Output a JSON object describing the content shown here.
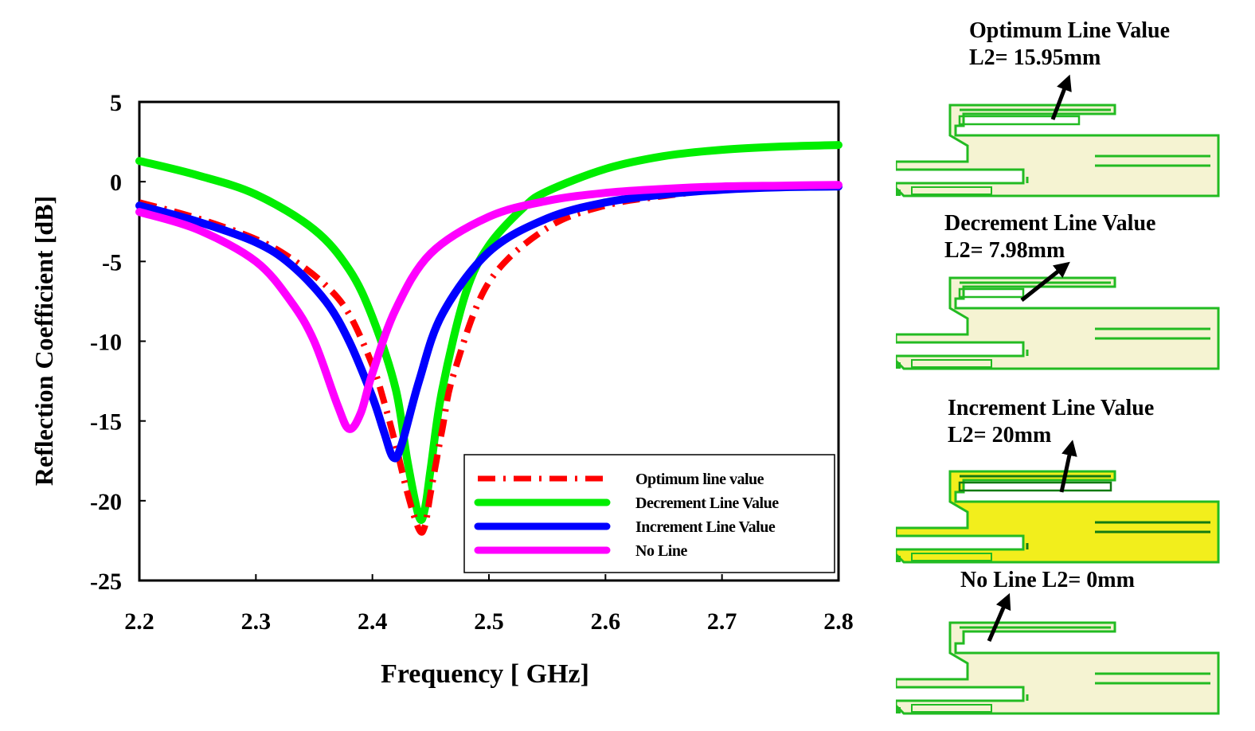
{
  "chart_data": {
    "type": "line",
    "xlabel": "Frequency [ GHz]",
    "ylabel": "Reflection Coefficient [dB]",
    "xlim": [
      2.2,
      2.8
    ],
    "ylim": [
      -25,
      5
    ],
    "xticks": [
      "2.2",
      "2.3",
      "2.4",
      "2.5",
      "2.6",
      "2.7",
      "2.8"
    ],
    "yticks": [
      "5",
      "0",
      "-5",
      "-10",
      "-15",
      "-20",
      "-25"
    ],
    "legend_position": "bottom-right",
    "series": [
      {
        "name": "Optimum line value",
        "color": "#ff0000",
        "style": "dashdot",
        "x": [
          2.2,
          2.25,
          2.3,
          2.33,
          2.36,
          2.38,
          2.4,
          2.41,
          2.42,
          2.43,
          2.44,
          2.445,
          2.45,
          2.46,
          2.47,
          2.5,
          2.55,
          2.6,
          2.65,
          2.7,
          2.75,
          2.8
        ],
        "y": [
          -1.3,
          -2.3,
          -3.6,
          -4.8,
          -6.5,
          -8.3,
          -11.5,
          -13.8,
          -16.5,
          -19.5,
          -21.8,
          -21.6,
          -19.5,
          -15.5,
          -12.0,
          -6.3,
          -2.9,
          -1.5,
          -0.9,
          -0.5,
          -0.35,
          -0.3
        ]
      },
      {
        "name": "Decrement Line Value",
        "color": "#00ee00",
        "style": "solid",
        "x": [
          2.2,
          2.25,
          2.3,
          2.35,
          2.38,
          2.4,
          2.42,
          2.43,
          2.44,
          2.445,
          2.45,
          2.46,
          2.48,
          2.5,
          2.53,
          2.55,
          2.6,
          2.65,
          2.7,
          2.75,
          2.8
        ],
        "y": [
          1.3,
          0.4,
          -0.8,
          -3.0,
          -5.5,
          -8.5,
          -13.0,
          -17.5,
          -21.0,
          -20.5,
          -18.0,
          -13.0,
          -7.0,
          -4.0,
          -1.6,
          -0.6,
          0.8,
          1.6,
          2.0,
          2.2,
          2.3
        ]
      },
      {
        "name": "Increment Line Value",
        "color": "#0000ff",
        "style": "solid",
        "x": [
          2.2,
          2.25,
          2.3,
          2.33,
          2.36,
          2.38,
          2.4,
          2.41,
          2.418,
          2.425,
          2.44,
          2.46,
          2.5,
          2.55,
          2.6,
          2.65,
          2.7,
          2.75,
          2.8
        ],
        "y": [
          -1.5,
          -2.5,
          -3.8,
          -5.2,
          -7.5,
          -10.0,
          -13.5,
          -15.7,
          -17.3,
          -16.5,
          -12.5,
          -8.3,
          -4.4,
          -2.3,
          -1.3,
          -0.8,
          -0.5,
          -0.35,
          -0.3
        ]
      },
      {
        "name": "No Line",
        "color": "#ff00ff",
        "style": "solid",
        "x": [
          2.2,
          2.25,
          2.3,
          2.33,
          2.35,
          2.37,
          2.38,
          2.39,
          2.4,
          2.42,
          2.45,
          2.5,
          2.55,
          2.6,
          2.65,
          2.7,
          2.75,
          2.8
        ],
        "y": [
          -1.9,
          -3.0,
          -5.0,
          -7.5,
          -10.0,
          -14.0,
          -15.5,
          -14.5,
          -12.0,
          -8.0,
          -4.5,
          -2.2,
          -1.2,
          -0.7,
          -0.45,
          -0.3,
          -0.25,
          -0.2
        ]
      }
    ]
  },
  "panels": [
    {
      "title_line1": "Optimum Line Value",
      "title_line2": "L2= 15.95mm",
      "variant": "optimum"
    },
    {
      "title_line1": "Decrement Line Value",
      "title_line2": "L2= 7.98mm",
      "variant": "decrement"
    },
    {
      "title_line1": "Increment Line Value",
      "title_line2": "L2= 20mm",
      "variant": "increment"
    },
    {
      "title_line1": "No Line L2= 0mm",
      "title_line2": "",
      "variant": "noline"
    }
  ],
  "colors": {
    "antenna_fill": "#f5f3d2",
    "antenna_fill_increment": "#f2ee1c",
    "antenna_stroke": "#22bb22",
    "inner_stroke": "#127a12"
  }
}
